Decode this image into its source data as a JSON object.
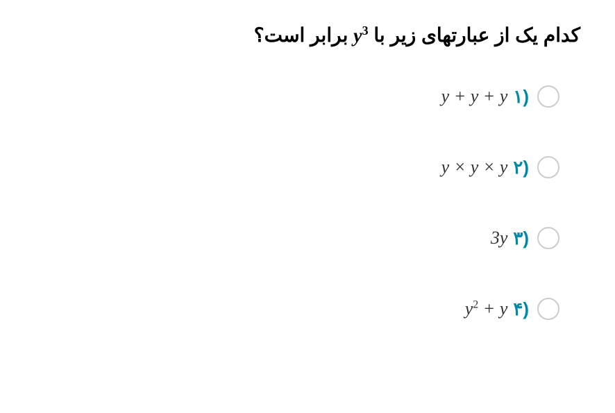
{
  "question": {
    "prefix": "کدام یک از عبارتهای زیر با ",
    "math_var": "y",
    "math_exp": "3",
    "suffix": " برابر است؟"
  },
  "options": [
    {
      "number": "۱)",
      "expression": "y + y + y"
    },
    {
      "number": "۲)",
      "expression": "y × y × y"
    },
    {
      "number": "۳)",
      "expression": "3y"
    },
    {
      "number": "۴)",
      "expression_base": "y",
      "expression_exp": "2",
      "expression_rest": " + y"
    }
  ],
  "colors": {
    "option_number": "#0088aa",
    "text": "#000000",
    "radio_border": "#cccccc"
  }
}
